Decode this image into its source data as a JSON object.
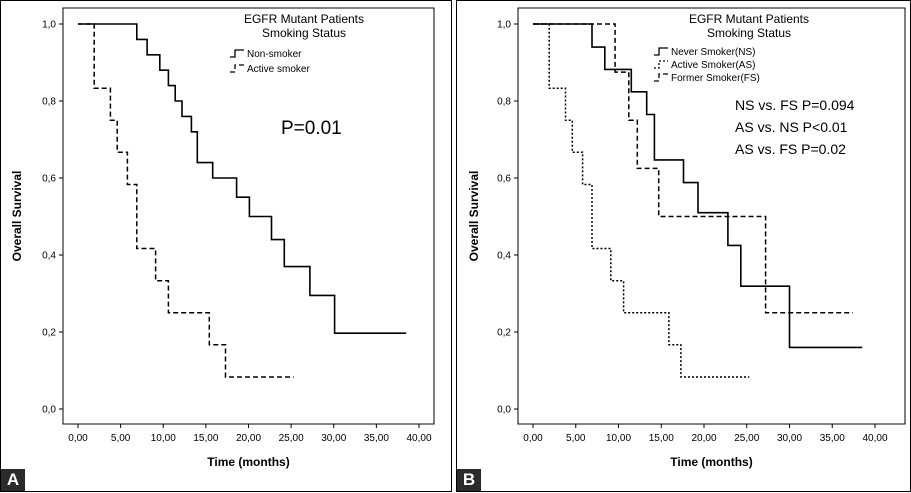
{
  "chart_data": [
    {
      "type": "line",
      "panel_label": "A",
      "title": "EGFR Mutant Patients",
      "subtitle": "Smoking Status",
      "xlabel": "Time (months)",
      "ylabel": "Overall Survival",
      "xlim": [
        0,
        40
      ],
      "ylim": [
        0,
        1
      ],
      "x_ticks": [
        "0,00",
        "5,00",
        "10,00",
        "15,00",
        "20,00",
        "25,00",
        "30,00",
        "35,00",
        "40,00"
      ],
      "y_ticks": [
        "0,0",
        "0,2",
        "0,4",
        "0,6",
        "0,8",
        "1,0"
      ],
      "annotations": [
        "P=0.01"
      ],
      "grid": false,
      "legend_position": "top-center",
      "series": [
        {
          "name": "Non-smoker",
          "style": "solid",
          "points": [
            [
              0,
              1
            ],
            [
              6.9,
              1
            ],
            [
              6.9,
              0.96
            ],
            [
              8.1,
              0.96
            ],
            [
              8.1,
              0.92
            ],
            [
              9.6,
              0.92
            ],
            [
              9.6,
              0.88
            ],
            [
              10.6,
              0.88
            ],
            [
              10.6,
              0.84
            ],
            [
              11.4,
              0.84
            ],
            [
              11.4,
              0.8
            ],
            [
              12.2,
              0.8
            ],
            [
              12.2,
              0.76
            ],
            [
              13.3,
              0.76
            ],
            [
              13.3,
              0.72
            ],
            [
              14,
              0.72
            ],
            [
              14,
              0.64
            ],
            [
              15.8,
              0.64
            ],
            [
              15.8,
              0.6
            ],
            [
              18.6,
              0.6
            ],
            [
              18.6,
              0.55
            ],
            [
              20.1,
              0.55
            ],
            [
              20.1,
              0.5
            ],
            [
              22.7,
              0.5
            ],
            [
              22.7,
              0.44
            ],
            [
              24.2,
              0.44
            ],
            [
              24.2,
              0.37
            ],
            [
              27.2,
              0.37
            ],
            [
              27.2,
              0.295
            ],
            [
              30.1,
              0.295
            ],
            [
              30.1,
              0.197
            ],
            [
              38.5,
              0.197
            ]
          ]
        },
        {
          "name": "Active smoker",
          "style": "dashed",
          "points": [
            [
              0,
              1
            ],
            [
              1.9,
              1
            ],
            [
              1.9,
              0.833
            ],
            [
              3.8,
              0.833
            ],
            [
              3.8,
              0.75
            ],
            [
              4.6,
              0.75
            ],
            [
              4.6,
              0.667
            ],
            [
              5.8,
              0.667
            ],
            [
              5.8,
              0.583
            ],
            [
              6.9,
              0.583
            ],
            [
              6.9,
              0.417
            ],
            [
              9.1,
              0.417
            ],
            [
              9.1,
              0.333
            ],
            [
              10.6,
              0.333
            ],
            [
              10.6,
              0.25
            ],
            [
              15.4,
              0.25
            ],
            [
              15.4,
              0.167
            ],
            [
              17.3,
              0.167
            ],
            [
              17.3,
              0.083
            ],
            [
              25.3,
              0.083
            ]
          ]
        }
      ]
    },
    {
      "type": "line",
      "panel_label": "B",
      "title": "EGFR Mutant Patients",
      "subtitle": "Smoking Status",
      "xlabel": "Time (months)",
      "ylabel": "Overall Survival",
      "xlim": [
        0,
        40
      ],
      "ylim": [
        0,
        1
      ],
      "x_ticks": [
        "0,00",
        "5,00",
        "10,00",
        "15,00",
        "20,00",
        "25,00",
        "30,00",
        "35,00",
        "40,00"
      ],
      "y_ticks": [
        "0,0",
        "0,2",
        "0,4",
        "0,6",
        "0,8",
        "1,0"
      ],
      "annotations": [
        "NS vs. FS P=0.094",
        "AS vs. NS P<0.01",
        "AS vs. FS P=0.02"
      ],
      "grid": false,
      "legend_position": "top-center",
      "series": [
        {
          "name": "Never Smoker(NS)",
          "style": "solid",
          "points": [
            [
              0,
              1
            ],
            [
              6.9,
              1
            ],
            [
              6.9,
              0.94
            ],
            [
              8.4,
              0.94
            ],
            [
              8.4,
              0.882
            ],
            [
              11.5,
              0.882
            ],
            [
              11.5,
              0.824
            ],
            [
              13.3,
              0.824
            ],
            [
              13.3,
              0.765
            ],
            [
              14.2,
              0.765
            ],
            [
              14.2,
              0.647
            ],
            [
              17.6,
              0.647
            ],
            [
              17.6,
              0.588
            ],
            [
              19.3,
              0.588
            ],
            [
              19.3,
              0.51
            ],
            [
              22.8,
              0.51
            ],
            [
              22.8,
              0.425
            ],
            [
              24.3,
              0.425
            ],
            [
              24.3,
              0.319
            ],
            [
              30,
              0.319
            ],
            [
              30,
              0.16
            ],
            [
              38.5,
              0.16
            ]
          ]
        },
        {
          "name": "Active Smoker(AS)",
          "style": "dotted",
          "points": [
            [
              0,
              1
            ],
            [
              1.9,
              1
            ],
            [
              1.9,
              0.833
            ],
            [
              3.8,
              0.833
            ],
            [
              3.8,
              0.75
            ],
            [
              4.6,
              0.75
            ],
            [
              4.6,
              0.667
            ],
            [
              5.8,
              0.667
            ],
            [
              5.8,
              0.583
            ],
            [
              6.9,
              0.583
            ],
            [
              6.9,
              0.417
            ],
            [
              9.1,
              0.417
            ],
            [
              9.1,
              0.333
            ],
            [
              10.6,
              0.333
            ],
            [
              10.6,
              0.25
            ],
            [
              15.9,
              0.25
            ],
            [
              15.9,
              0.167
            ],
            [
              17.3,
              0.167
            ],
            [
              17.3,
              0.083
            ],
            [
              25.3,
              0.083
            ]
          ]
        },
        {
          "name": "Former Smoker(FS)",
          "style": "dashed",
          "points": [
            [
              0,
              1
            ],
            [
              9.6,
              1
            ],
            [
              9.6,
              0.875
            ],
            [
              11.2,
              0.875
            ],
            [
              11.2,
              0.75
            ],
            [
              12.2,
              0.75
            ],
            [
              12.2,
              0.625
            ],
            [
              14.7,
              0.625
            ],
            [
              14.7,
              0.5
            ],
            [
              27.2,
              0.5
            ],
            [
              27.2,
              0.25
            ],
            [
              37.4,
              0.25
            ]
          ]
        }
      ]
    }
  ]
}
